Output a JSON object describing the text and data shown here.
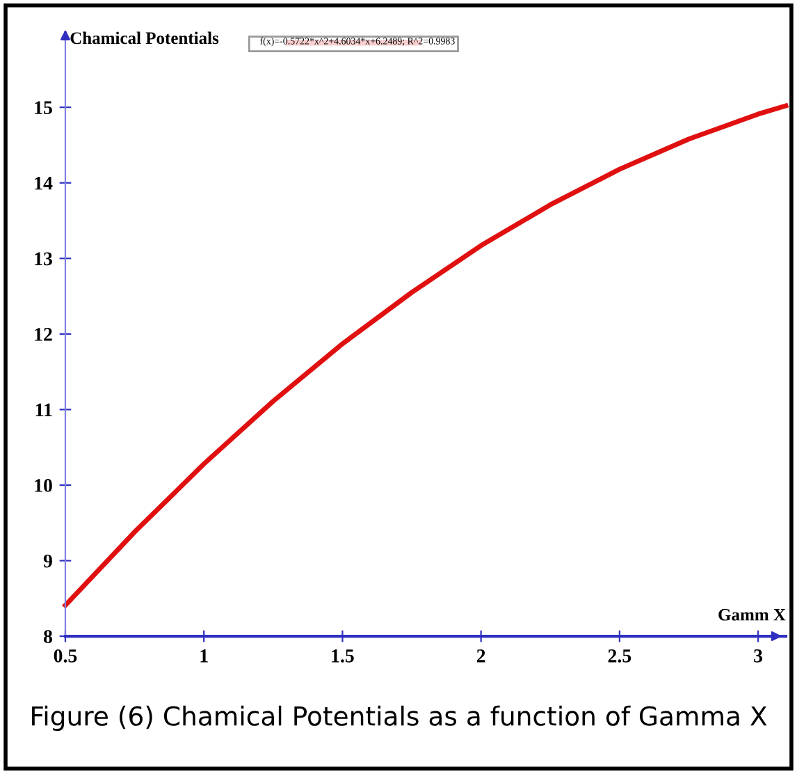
{
  "chart_data": {
    "type": "line",
    "xlabel": "Gamm X",
    "ylabel": "Chamical Potentials",
    "x": [
      0.5,
      0.75,
      1.0,
      1.25,
      1.5,
      1.75,
      2.0,
      2.25,
      2.5,
      2.75,
      3.0,
      3.1
    ],
    "series": [
      {
        "name": "f(x)=-0.5722*x^2+4.6034*x+6.2489; R^2=0.9983",
        "color": "#e01010",
        "values": [
          8.41,
          9.38,
          10.28,
          11.11,
          11.87,
          12.55,
          13.17,
          13.71,
          14.18,
          14.58,
          14.91,
          15.02
        ]
      }
    ],
    "xlim": [
      0.5,
      3.1
    ],
    "ylim": [
      8,
      16
    ],
    "xticks": [
      0.5,
      1,
      1.5,
      2,
      2.5,
      3
    ],
    "yticks": [
      8,
      9,
      10,
      11,
      12,
      13,
      14,
      15
    ],
    "grid": false,
    "legend": "top",
    "marker": "none",
    "line_style": "solid",
    "annotations": [
      "Figure (6) Chamical Potentials as a function of Gamma X"
    ]
  }
}
